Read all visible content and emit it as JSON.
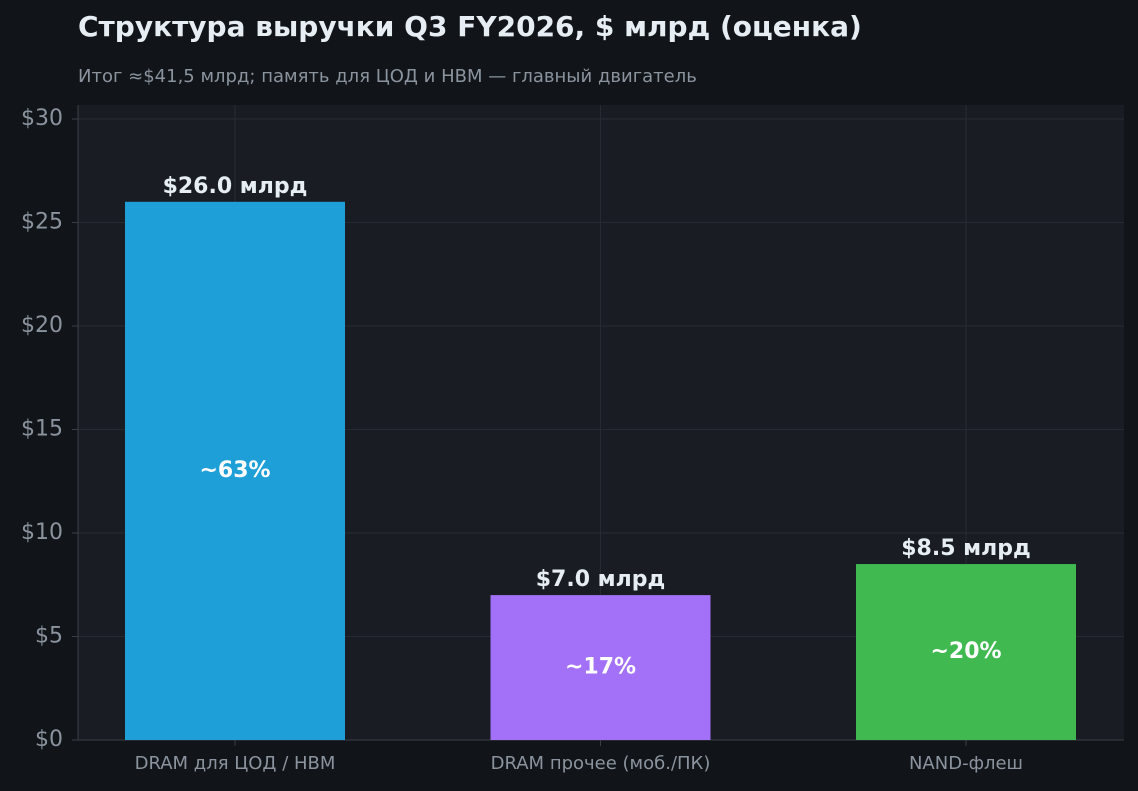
{
  "chart_data": {
    "type": "bar",
    "title": "Структура выручки Q3 FY2026, $ млрд (оценка)",
    "subtitle": "Итог ≈$41,5 млрд; память для ЦОД и HBM — главный двигатель",
    "categories": [
      "DRAM для ЦОД / HBM",
      "DRAM прочее (моб./ПК)",
      "NAND-флеш"
    ],
    "values": [
      26.0,
      7.0,
      8.5
    ],
    "value_labels": [
      "$26.0 млрд",
      "$7.0 млрд",
      "$8.5 млрд"
    ],
    "share_labels": [
      "~63%",
      "~17%",
      "~20%"
    ],
    "colors": [
      "#1f9fd8",
      "#a371f7",
      "#3fb950"
    ],
    "ylim": [
      0,
      30
    ],
    "yticks": [
      {
        "value": 0,
        "label": "$0"
      },
      {
        "value": 5,
        "label": "$5"
      },
      {
        "value": 10,
        "label": "$10"
      },
      {
        "value": 15,
        "label": "$15"
      },
      {
        "value": 20,
        "label": "$20"
      },
      {
        "value": 25,
        "label": "$25"
      },
      {
        "value": 30,
        "label": "$30"
      }
    ],
    "grid": true
  }
}
